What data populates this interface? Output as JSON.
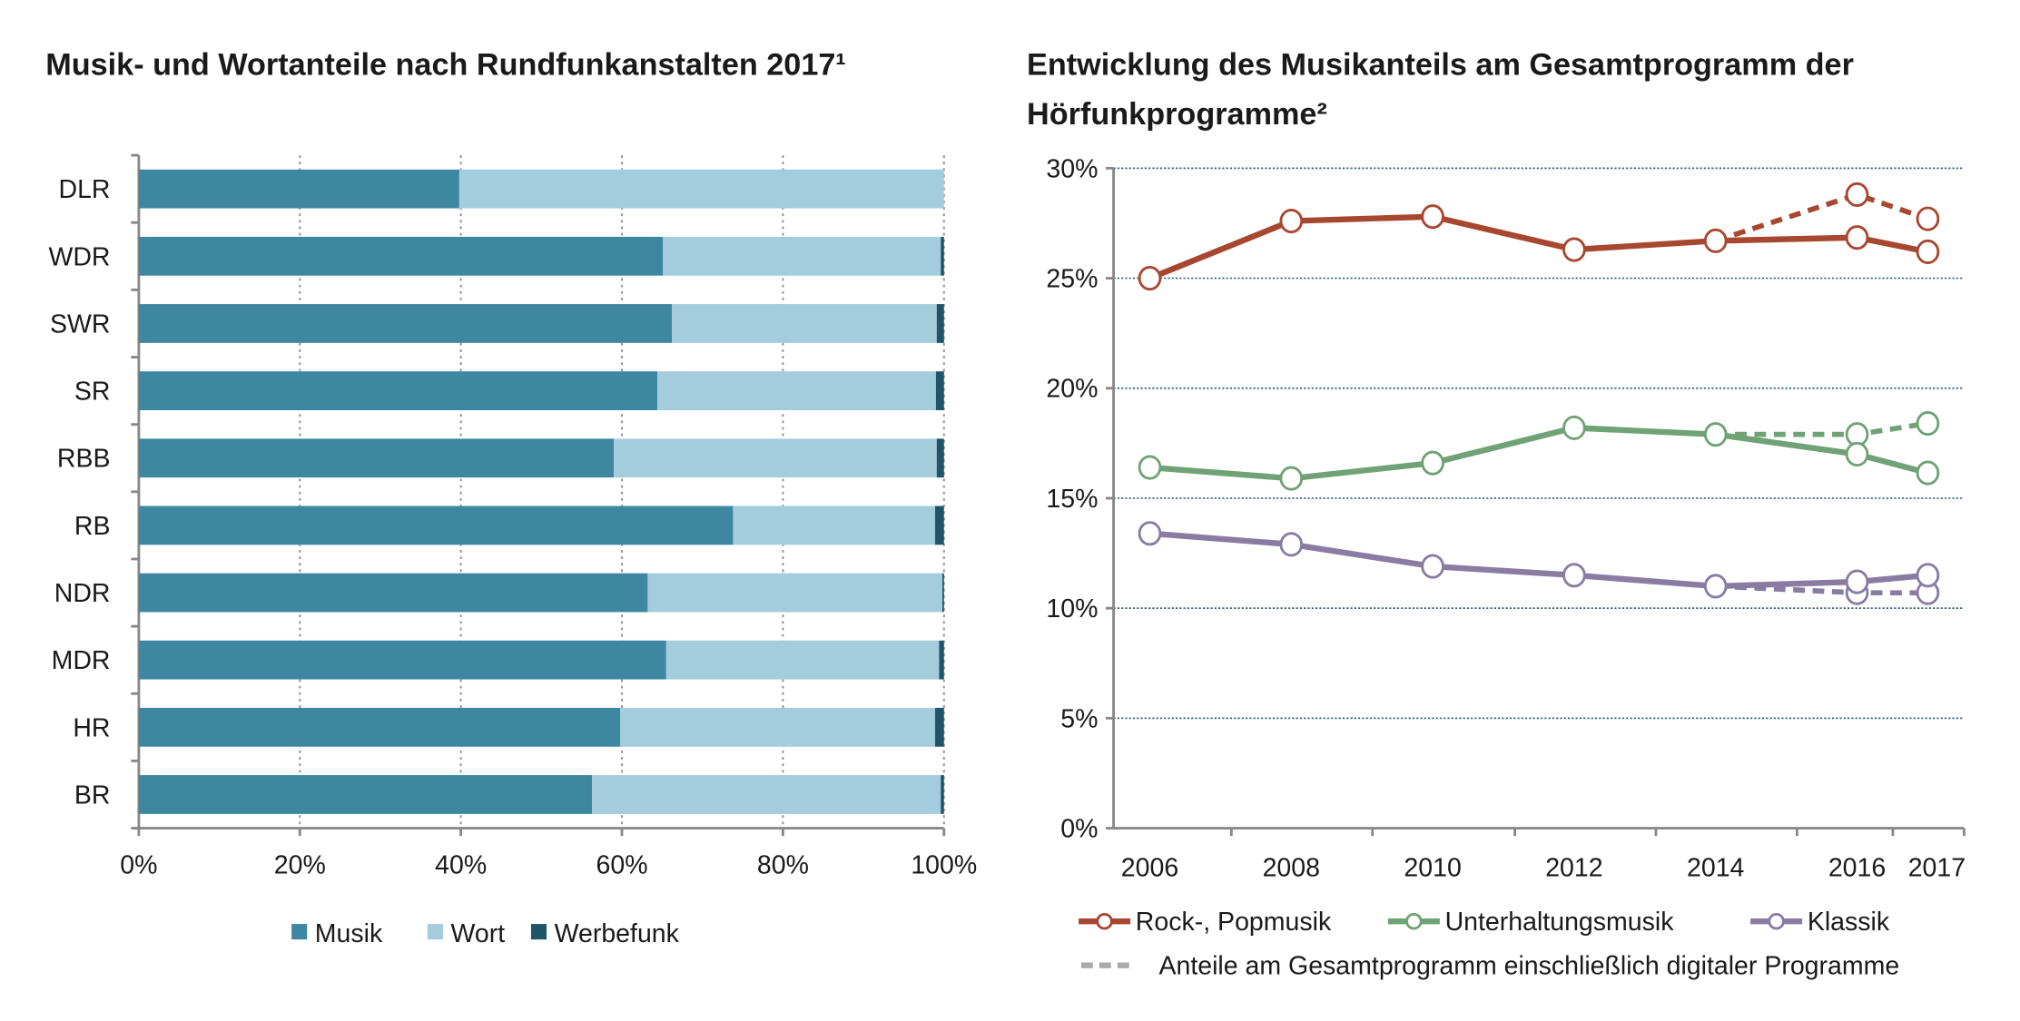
{
  "chart_data": [
    {
      "type": "bar",
      "orientation": "horizontal",
      "stacked": true,
      "title": "Musik- und Wortanteile nach Rundfunkanstalten 2017¹",
      "categories": [
        "DLR",
        "WDR",
        "SWR",
        "SR",
        "RBB",
        "RB",
        "NDR",
        "MDR",
        "HR",
        "BR"
      ],
      "series": [
        {
          "name": "Musik",
          "color": "#3d87a1",
          "values": [
            39.8,
            65.1,
            66.2,
            64.4,
            59.0,
            73.8,
            63.2,
            65.5,
            59.8,
            56.3
          ]
        },
        {
          "name": "Wort",
          "color": "#a3ccdc",
          "values": [
            60.2,
            34.5,
            32.9,
            34.6,
            40.1,
            25.1,
            36.6,
            33.9,
            39.1,
            43.3
          ]
        },
        {
          "name": "Werbefunk",
          "color": "#1f5566",
          "values": [
            0.0,
            0.4,
            0.9,
            1.0,
            0.9,
            1.1,
            0.2,
            0.6,
            1.1,
            0.4
          ]
        }
      ],
      "xlim": [
        0,
        100
      ],
      "xticks": [
        "0%",
        "20%",
        "40%",
        "60%",
        "80%",
        "100%"
      ],
      "grid": true,
      "legend": "bottom"
    },
    {
      "type": "line",
      "title_lines": [
        "Entwicklung des Musikanteils am Gesamtprogramm der",
        "Hörfunkprogramme²"
      ],
      "x": [
        2006,
        2008,
        2010,
        2012,
        2014,
        2016,
        2017
      ],
      "xticks": [
        "2006",
        "2008",
        "2010",
        "2012",
        "2014",
        "2016",
        "2017"
      ],
      "ylim": [
        0,
        30
      ],
      "yticks": [
        "0%",
        "5%",
        "10%",
        "15%",
        "20%",
        "25%",
        "30%"
      ],
      "grid": true,
      "legend": "bottom",
      "series": [
        {
          "name": "Rock-, Popmusik",
          "color": "#a8472f",
          "values": [
            25.0,
            27.6,
            27.8,
            26.3,
            26.7,
            26.85,
            26.2
          ],
          "dashed": {
            "x": [
              2014,
              2016,
              2017
            ],
            "values": [
              26.7,
              28.8,
              27.7
            ]
          }
        },
        {
          "name": "Unterhaltungsmusik",
          "color": "#6fa274",
          "values": [
            16.4,
            15.9,
            16.6,
            18.2,
            17.9,
            17.0,
            16.15
          ],
          "dashed": {
            "x": [
              2014,
              2016,
              2017
            ],
            "values": [
              17.9,
              17.9,
              18.4
            ]
          }
        },
        {
          "name": "Klassik",
          "color": "#8a7ba3",
          "values": [
            13.4,
            12.9,
            11.9,
            11.5,
            11.0,
            11.2,
            11.5
          ],
          "dashed": {
            "x": [
              2014,
              2016,
              2017
            ],
            "values": [
              11.0,
              10.7,
              10.7
            ]
          }
        }
      ],
      "dashed_legend": {
        "label": "Anteile am Gesamtprogramm einschließlich digitaler Programme",
        "color": "#aaaaaa"
      }
    }
  ]
}
